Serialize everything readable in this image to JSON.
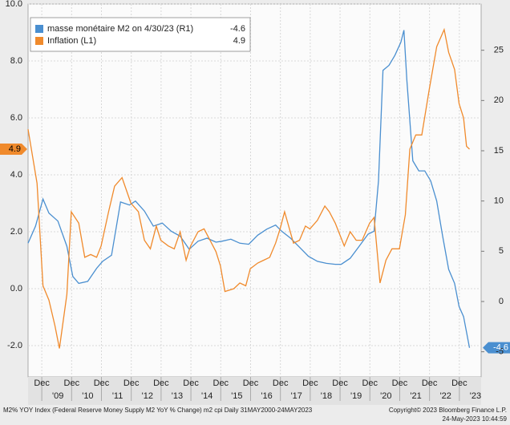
{
  "chart_data": {
    "type": "line",
    "legend": "top-left",
    "grid": true,
    "xlim": [
      2008.5,
      2023.69
    ],
    "xticks": [
      {
        "value": 2008.96,
        "label": "Dec"
      },
      {
        "value": 2009.96,
        "label": "Dec"
      },
      {
        "value": 2010.96,
        "label": "Dec"
      },
      {
        "value": 2011.96,
        "label": "Dec"
      },
      {
        "value": 2012.96,
        "label": "Dec"
      },
      {
        "value": 2013.96,
        "label": "Dec"
      },
      {
        "value": 2014.96,
        "label": "Dec"
      },
      {
        "value": 2015.96,
        "label": "Dec"
      },
      {
        "value": 2016.96,
        "label": "Dec"
      },
      {
        "value": 2017.96,
        "label": "Dec"
      },
      {
        "value": 2018.96,
        "label": "Dec"
      },
      {
        "value": 2019.96,
        "label": "Dec"
      },
      {
        "value": 2020.96,
        "label": "Dec"
      },
      {
        "value": 2021.96,
        "label": "Dec"
      },
      {
        "value": 2022.96,
        "label": "Dec"
      }
    ],
    "year_ticks": [
      {
        "value": 2009.5,
        "label": "'09"
      },
      {
        "value": 2010.5,
        "label": "'10"
      },
      {
        "value": 2011.5,
        "label": "'11"
      },
      {
        "value": 2012.5,
        "label": "'12"
      },
      {
        "value": 2013.5,
        "label": "'13"
      },
      {
        "value": 2014.5,
        "label": "'14"
      },
      {
        "value": 2015.5,
        "label": "'15"
      },
      {
        "value": 2016.5,
        "label": "'16"
      },
      {
        "value": 2017.5,
        "label": "'17"
      },
      {
        "value": 2018.5,
        "label": "'18"
      },
      {
        "value": 2019.5,
        "label": "'19"
      },
      {
        "value": 2020.5,
        "label": "'20"
      },
      {
        "value": 2021.5,
        "label": "'21"
      },
      {
        "value": 2022.5,
        "label": "'22"
      },
      {
        "value": 2023.5,
        "label": "'23"
      }
    ],
    "ylim": [
      -3.1,
      10.0
    ],
    "yticks": [
      {
        "value": -2,
        "label": "-2.0"
      },
      {
        "value": 0,
        "label": "0.0"
      },
      {
        "value": 2,
        "label": "2.0"
      },
      {
        "value": 4,
        "label": "4.0"
      },
      {
        "value": 6,
        "label": "6.0"
      },
      {
        "value": 8,
        "label": "8.0"
      },
      {
        "value": 10,
        "label": "10.0"
      }
    ],
    "y2lim": [
      -7.5,
      29.6
    ],
    "y2ticks": [
      -5,
      0,
      5,
      10,
      15,
      20,
      25
    ],
    "series": [
      {
        "name": "masse monétaire M2 on 4/30/23 (R1)",
        "color": "#4a8fd0",
        "axis": "y2",
        "last_value": -4.6,
        "x": [
          2008.5,
          2008.75,
          2009.0,
          2009.2,
          2009.5,
          2009.8,
          2010.0,
          2010.2,
          2010.5,
          2010.8,
          2011.0,
          2011.3,
          2011.6,
          2011.9,
          2012.1,
          2012.4,
          2012.7,
          2013.0,
          2013.3,
          2013.6,
          2013.9,
          2014.2,
          2014.5,
          2014.8,
          2015.0,
          2015.3,
          2015.6,
          2015.9,
          2016.2,
          2016.5,
          2016.8,
          2017.0,
          2017.3,
          2017.6,
          2017.9,
          2018.2,
          2018.5,
          2018.8,
          2019.0,
          2019.3,
          2019.6,
          2019.9,
          2020.1,
          2020.25,
          2020.4,
          2020.6,
          2020.8,
          2021.0,
          2021.1,
          2021.2,
          2021.4,
          2021.6,
          2021.8,
          2022.0,
          2022.2,
          2022.4,
          2022.6,
          2022.8,
          2022.95,
          2023.1,
          2023.3
        ],
        "values": [
          5.8,
          7.5,
          10.2,
          8.8,
          8.0,
          5.5,
          2.5,
          1.8,
          2.0,
          3.3,
          4.0,
          4.6,
          9.9,
          9.6,
          10.0,
          9.0,
          7.5,
          7.8,
          7.0,
          6.5,
          5.2,
          6.0,
          6.3,
          5.9,
          6.0,
          6.2,
          5.8,
          5.7,
          6.6,
          7.2,
          7.6,
          7.0,
          6.3,
          5.4,
          4.5,
          4.0,
          3.8,
          3.7,
          3.7,
          4.3,
          5.5,
          6.7,
          7.0,
          12.0,
          23.0,
          23.5,
          24.5,
          25.8,
          27.0,
          22.0,
          14.0,
          13.0,
          13.0,
          12.0,
          10.0,
          6.5,
          3.2,
          1.8,
          -0.5,
          -1.5,
          -4.6
        ]
      },
      {
        "name": "Inflation (L1)",
        "color": "#f08a2c",
        "last_value": 4.9,
        "x": [
          2008.5,
          2008.8,
          2009.0,
          2009.2,
          2009.4,
          2009.55,
          2009.8,
          2009.95,
          2010.2,
          2010.4,
          2010.6,
          2010.8,
          2010.95,
          2011.2,
          2011.4,
          2011.65,
          2011.95,
          2012.2,
          2012.4,
          2012.6,
          2012.8,
          2012.95,
          2013.2,
          2013.4,
          2013.6,
          2013.8,
          2013.95,
          2014.2,
          2014.4,
          2014.6,
          2014.8,
          2014.95,
          2015.1,
          2015.4,
          2015.6,
          2015.8,
          2015.95,
          2016.2,
          2016.4,
          2016.6,
          2016.8,
          2016.95,
          2017.1,
          2017.4,
          2017.6,
          2017.8,
          2017.95,
          2018.2,
          2018.45,
          2018.6,
          2018.8,
          2018.95,
          2019.1,
          2019.3,
          2019.5,
          2019.7,
          2019.95,
          2020.1,
          2020.3,
          2020.5,
          2020.7,
          2020.95,
          2021.15,
          2021.3,
          2021.5,
          2021.7,
          2021.95,
          2022.2,
          2022.45,
          2022.6,
          2022.8,
          2022.95,
          2023.1,
          2023.2,
          2023.3
        ],
        "values": [
          5.6,
          3.7,
          0.1,
          -0.4,
          -1.3,
          -2.1,
          -0.2,
          2.7,
          2.3,
          1.1,
          1.2,
          1.1,
          1.5,
          2.7,
          3.6,
          3.9,
          3.0,
          2.7,
          1.7,
          1.4,
          2.2,
          1.7,
          1.5,
          1.4,
          2.0,
          1.0,
          1.5,
          2.0,
          2.1,
          1.7,
          1.3,
          0.8,
          -0.1,
          0.0,
          0.2,
          0.1,
          0.7,
          0.9,
          1.0,
          1.1,
          1.6,
          2.1,
          2.7,
          1.6,
          1.7,
          2.2,
          2.1,
          2.4,
          2.9,
          2.7,
          2.3,
          1.9,
          1.5,
          2.0,
          1.7,
          1.7,
          2.3,
          2.5,
          0.2,
          1.0,
          1.4,
          1.4,
          2.6,
          4.9,
          5.4,
          5.4,
          7.0,
          8.5,
          9.1,
          8.3,
          7.7,
          6.5,
          6.0,
          5.0,
          4.9
        ]
      }
    ],
    "footer": {
      "source": "M2% YOY Index (Federal Reserve Money Supply M2 YoY % Change) m2 cpi  Daily 31MAY2000-24MAY2023",
      "copyright": "Copyright© 2023 Bloomberg Finance L.P.",
      "timestamp": "24-May-2023 10:44:59"
    }
  }
}
